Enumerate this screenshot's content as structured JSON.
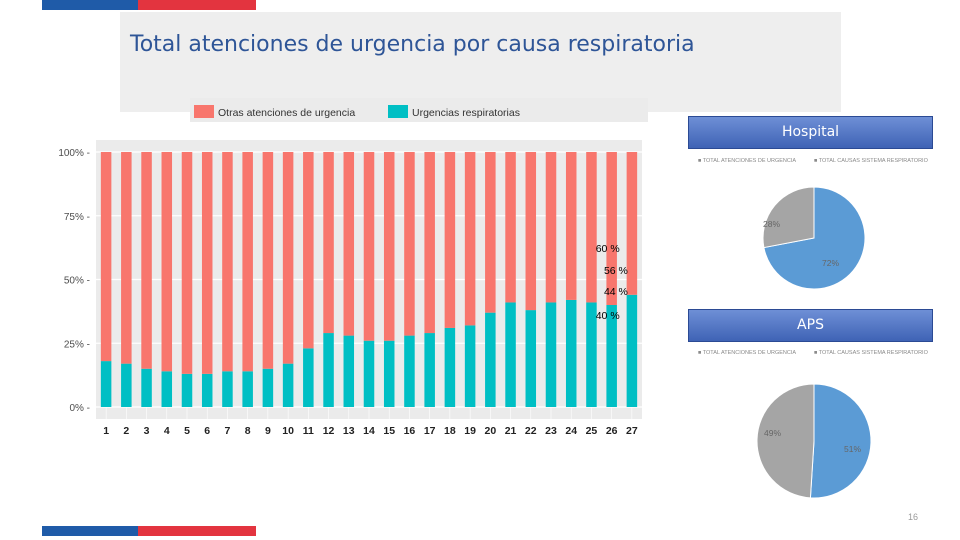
{
  "title": "Total atenciones de urgencia por causa respiratoria",
  "page_number": "16",
  "colors": {
    "otras": "#f8766d",
    "respiratorias": "#00bfc4",
    "hospital_total": "#5b9bd5",
    "hospital_resp": "#a5a5a5",
    "flag_blue": "#1f5ba8",
    "flag_red": "#e3343f"
  },
  "chart_data": [
    {
      "type": "bar",
      "stacked": true,
      "categories": [
        "1",
        "2",
        "3",
        "4",
        "5",
        "6",
        "7",
        "8",
        "9",
        "10",
        "11",
        "12",
        "13",
        "14",
        "15",
        "16",
        "17",
        "18",
        "19",
        "20",
        "21",
        "22",
        "23",
        "24",
        "25",
        "26",
        "27"
      ],
      "series": [
        {
          "name": "Otras atenciones de urgencia",
          "values": [
            82,
            83,
            85,
            86,
            87,
            87,
            86,
            86,
            85,
            83,
            77,
            71,
            72,
            74,
            74,
            72,
            71,
            69,
            68,
            63,
            59,
            62,
            59,
            58,
            59,
            60,
            56
          ]
        },
        {
          "name": "Urgencias respiratorias",
          "values": [
            18,
            17,
            15,
            14,
            13,
            13,
            14,
            14,
            15,
            17,
            23,
            29,
            28,
            26,
            26,
            28,
            29,
            31,
            32,
            37,
            41,
            38,
            41,
            42,
            41,
            40,
            44
          ]
        }
      ],
      "ylim": [
        0,
        100
      ],
      "yticks": [
        "0%",
        "25%",
        "50%",
        "75%",
        "100%"
      ],
      "annotations": [
        {
          "category": "26",
          "label": "60 %"
        },
        {
          "category": "27",
          "label": "56 %"
        },
        {
          "category": "27",
          "label": "44 %"
        },
        {
          "category": "26",
          "label": "40 %"
        }
      ],
      "legend_position": "top"
    },
    {
      "type": "pie",
      "title": "Hospital",
      "labels": [
        "TOTAL ATENCIONES DE URGENCIA",
        "TOTAL CAUSAS SISTEMA RESPIRATORIO"
      ],
      "values": [
        72,
        28
      ],
      "value_labels": [
        "72%",
        "28%"
      ]
    },
    {
      "type": "pie",
      "title": "APS",
      "labels": [
        "TOTAL ATENCIONES DE URGENCIA",
        "TOTAL CAUSAS SISTEMA RESPIRATORIO"
      ],
      "values": [
        51,
        49
      ],
      "value_labels": [
        "51%",
        "49%"
      ]
    }
  ]
}
